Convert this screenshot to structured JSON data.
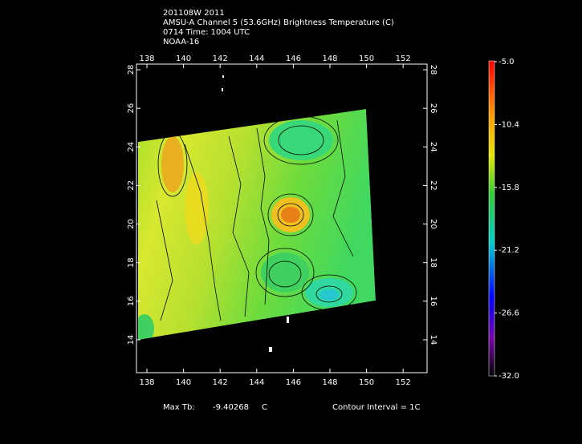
{
  "header": {
    "lines": [
      "201108W 2011",
      "AMSU-A Channel 5 (53.6GHz) Brightness Temperature (C)",
      "0714 Time: 1004 UTC",
      "NOAA-16"
    ]
  },
  "map": {
    "lon_ticks": [
      138,
      140,
      142,
      144,
      146,
      148,
      150,
      152
    ],
    "lat_ticks": [
      28,
      26,
      24,
      22,
      20,
      18,
      16,
      14
    ]
  },
  "colorbar": {
    "labels": [
      "-5.0",
      "-10.4",
      "-15.8",
      "-21.2",
      "-26.6",
      "-32.0"
    ]
  },
  "footer": {
    "max_label": "Max Tb:",
    "max_value": "-9.40268",
    "max_unit": "C",
    "contour": "Contour Interval = 1C"
  }
}
